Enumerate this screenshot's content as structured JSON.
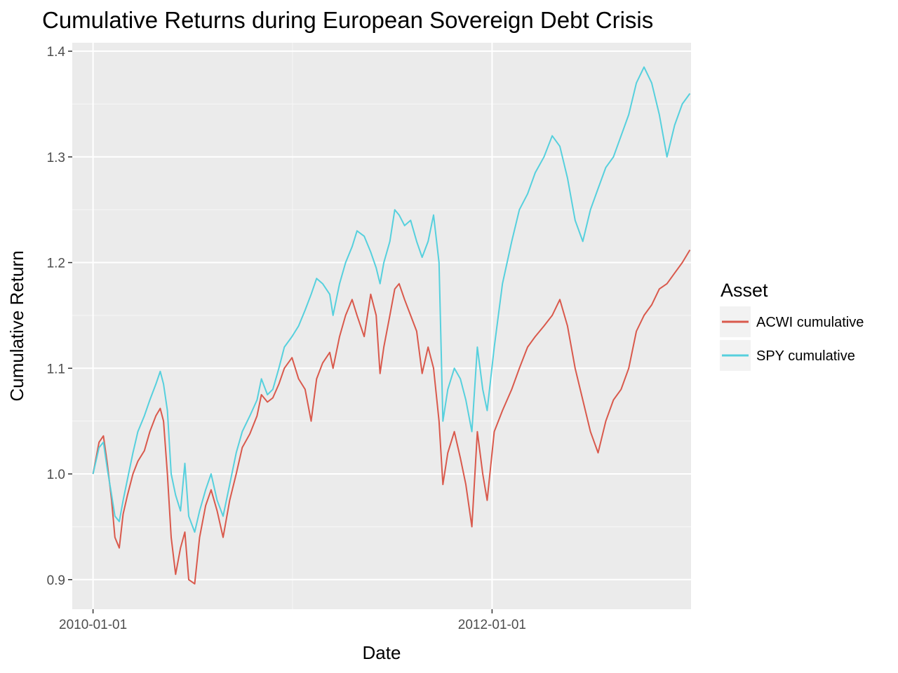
{
  "chart_data": {
    "type": "line",
    "title": "Cumulative Returns during European Sovereign Debt Crisis",
    "xlabel": "Date",
    "ylabel": "Cumulative Return",
    "xlim": [
      "2009-11-24",
      "2012-12-30"
    ],
    "ylim": [
      0.872,
      1.408
    ],
    "x_ticks": [
      "2010-01-01",
      "2012-01-01"
    ],
    "x_minor_ticks": [
      "2011-01-01",
      "2013-01-01"
    ],
    "y_ticks": [
      0.9,
      1.0,
      1.1,
      1.2,
      1.3,
      1.4
    ],
    "y_tick_labels": [
      "0.9",
      "1.0",
      "1.1",
      "1.2",
      "1.3",
      "1.4"
    ],
    "grid": true,
    "legend": {
      "title": "Asset",
      "position": "right"
    },
    "background": "#ebebeb",
    "series": [
      {
        "name": "ACWI cumulative",
        "color": "#d9594c",
        "points": [
          [
            "2010-01-01",
            1.0
          ],
          [
            "2010-01-12",
            1.03
          ],
          [
            "2010-01-20",
            1.036
          ],
          [
            "2010-01-27",
            1.01
          ],
          [
            "2010-02-04",
            0.975
          ],
          [
            "2010-02-10",
            0.94
          ],
          [
            "2010-02-18",
            0.93
          ],
          [
            "2010-02-25",
            0.962
          ],
          [
            "2010-03-05",
            0.98
          ],
          [
            "2010-03-15",
            1.0
          ],
          [
            "2010-03-24",
            1.012
          ],
          [
            "2010-04-05",
            1.022
          ],
          [
            "2010-04-15",
            1.04
          ],
          [
            "2010-04-26",
            1.055
          ],
          [
            "2010-05-04",
            1.062
          ],
          [
            "2010-05-10",
            1.05
          ],
          [
            "2010-05-17",
            1.0
          ],
          [
            "2010-05-24",
            0.94
          ],
          [
            "2010-06-01",
            0.905
          ],
          [
            "2010-06-10",
            0.93
          ],
          [
            "2010-06-18",
            0.945
          ],
          [
            "2010-06-25",
            0.9
          ],
          [
            "2010-07-06",
            0.896
          ],
          [
            "2010-07-15",
            0.94
          ],
          [
            "2010-07-26",
            0.97
          ],
          [
            "2010-08-05",
            0.985
          ],
          [
            "2010-08-16",
            0.965
          ],
          [
            "2010-08-27",
            0.94
          ],
          [
            "2010-09-08",
            0.975
          ],
          [
            "2010-09-20",
            1.0
          ],
          [
            "2010-10-01",
            1.025
          ],
          [
            "2010-10-15",
            1.038
          ],
          [
            "2010-10-28",
            1.055
          ],
          [
            "2010-11-05",
            1.075
          ],
          [
            "2010-11-16",
            1.068
          ],
          [
            "2010-11-26",
            1.072
          ],
          [
            "2010-12-07",
            1.085
          ],
          [
            "2010-12-17",
            1.1
          ],
          [
            "2010-12-31",
            1.11
          ],
          [
            "2011-01-12",
            1.09
          ],
          [
            "2011-01-24",
            1.08
          ],
          [
            "2011-02-04",
            1.05
          ],
          [
            "2011-02-14",
            1.09
          ],
          [
            "2011-02-25",
            1.105
          ],
          [
            "2011-03-10",
            1.115
          ],
          [
            "2011-03-16",
            1.1
          ],
          [
            "2011-03-28",
            1.13
          ],
          [
            "2011-04-08",
            1.15
          ],
          [
            "2011-04-20",
            1.165
          ],
          [
            "2011-04-29",
            1.15
          ],
          [
            "2011-05-12",
            1.13
          ],
          [
            "2011-05-24",
            1.17
          ],
          [
            "2011-06-03",
            1.15
          ],
          [
            "2011-06-10",
            1.095
          ],
          [
            "2011-06-17",
            1.12
          ],
          [
            "2011-06-28",
            1.15
          ],
          [
            "2011-07-07",
            1.175
          ],
          [
            "2011-07-15",
            1.18
          ],
          [
            "2011-07-25",
            1.165
          ],
          [
            "2011-08-05",
            1.15
          ],
          [
            "2011-08-16",
            1.135
          ],
          [
            "2011-08-26",
            1.095
          ],
          [
            "2011-09-06",
            1.12
          ],
          [
            "2011-09-16",
            1.1
          ],
          [
            "2011-09-26",
            1.05
          ],
          [
            "2011-10-03",
            0.99
          ],
          [
            "2011-10-12",
            1.02
          ],
          [
            "2011-10-24",
            1.04
          ],
          [
            "2011-11-04",
            1.015
          ],
          [
            "2011-11-14",
            0.99
          ],
          [
            "2011-11-25",
            0.95
          ],
          [
            "2011-12-05",
            1.04
          ],
          [
            "2011-12-15",
            1.0
          ],
          [
            "2011-12-23",
            0.975
          ],
          [
            "2012-01-05",
            1.04
          ],
          [
            "2012-01-20",
            1.06
          ],
          [
            "2012-02-06",
            1.08
          ],
          [
            "2012-02-20",
            1.1
          ],
          [
            "2012-03-06",
            1.12
          ],
          [
            "2012-03-20",
            1.13
          ],
          [
            "2012-04-05",
            1.14
          ],
          [
            "2012-04-20",
            1.15
          ],
          [
            "2012-05-04",
            1.165
          ],
          [
            "2012-05-18",
            1.14
          ],
          [
            "2012-06-01",
            1.1
          ],
          [
            "2012-06-15",
            1.07
          ],
          [
            "2012-06-29",
            1.04
          ],
          [
            "2012-07-13",
            1.02
          ],
          [
            "2012-07-27",
            1.05
          ],
          [
            "2012-08-10",
            1.07
          ],
          [
            "2012-08-24",
            1.08
          ],
          [
            "2012-09-07",
            1.1
          ],
          [
            "2012-09-21",
            1.135
          ],
          [
            "2012-10-05",
            1.15
          ],
          [
            "2012-10-19",
            1.16
          ],
          [
            "2012-11-02",
            1.175
          ],
          [
            "2012-11-16",
            1.18
          ],
          [
            "2012-11-30",
            1.19
          ],
          [
            "2012-12-14",
            1.2
          ],
          [
            "2012-12-28",
            1.212
          ]
        ]
      },
      {
        "name": "SPY cumulative",
        "color": "#56d0dd",
        "points": [
          [
            "2010-01-01",
            1.0
          ],
          [
            "2010-01-12",
            1.025
          ],
          [
            "2010-01-20",
            1.03
          ],
          [
            "2010-01-27",
            1.005
          ],
          [
            "2010-02-04",
            0.98
          ],
          [
            "2010-02-10",
            0.96
          ],
          [
            "2010-02-18",
            0.955
          ],
          [
            "2010-02-25",
            0.975
          ],
          [
            "2010-03-05",
            0.995
          ],
          [
            "2010-03-15",
            1.02
          ],
          [
            "2010-03-24",
            1.04
          ],
          [
            "2010-04-05",
            1.055
          ],
          [
            "2010-04-15",
            1.07
          ],
          [
            "2010-04-26",
            1.085
          ],
          [
            "2010-05-04",
            1.097
          ],
          [
            "2010-05-10",
            1.085
          ],
          [
            "2010-05-17",
            1.06
          ],
          [
            "2010-05-24",
            1.0
          ],
          [
            "2010-06-01",
            0.98
          ],
          [
            "2010-06-10",
            0.965
          ],
          [
            "2010-06-18",
            1.01
          ],
          [
            "2010-06-25",
            0.96
          ],
          [
            "2010-07-06",
            0.945
          ],
          [
            "2010-07-15",
            0.965
          ],
          [
            "2010-07-26",
            0.985
          ],
          [
            "2010-08-05",
            1.0
          ],
          [
            "2010-08-16",
            0.975
          ],
          [
            "2010-08-27",
            0.96
          ],
          [
            "2010-09-08",
            0.99
          ],
          [
            "2010-09-20",
            1.02
          ],
          [
            "2010-10-01",
            1.04
          ],
          [
            "2010-10-15",
            1.055
          ],
          [
            "2010-10-28",
            1.07
          ],
          [
            "2010-11-05",
            1.09
          ],
          [
            "2010-11-16",
            1.075
          ],
          [
            "2010-11-26",
            1.08
          ],
          [
            "2010-12-07",
            1.1
          ],
          [
            "2010-12-17",
            1.12
          ],
          [
            "2010-12-31",
            1.13
          ],
          [
            "2011-01-12",
            1.14
          ],
          [
            "2011-01-24",
            1.155
          ],
          [
            "2011-02-04",
            1.17
          ],
          [
            "2011-02-14",
            1.185
          ],
          [
            "2011-02-25",
            1.18
          ],
          [
            "2011-03-10",
            1.17
          ],
          [
            "2011-03-16",
            1.15
          ],
          [
            "2011-03-28",
            1.18
          ],
          [
            "2011-04-08",
            1.2
          ],
          [
            "2011-04-20",
            1.215
          ],
          [
            "2011-04-29",
            1.23
          ],
          [
            "2011-05-12",
            1.225
          ],
          [
            "2011-05-24",
            1.21
          ],
          [
            "2011-06-03",
            1.195
          ],
          [
            "2011-06-10",
            1.18
          ],
          [
            "2011-06-17",
            1.2
          ],
          [
            "2011-06-28",
            1.22
          ],
          [
            "2011-07-07",
            1.25
          ],
          [
            "2011-07-15",
            1.245
          ],
          [
            "2011-07-25",
            1.235
          ],
          [
            "2011-08-05",
            1.24
          ],
          [
            "2011-08-16",
            1.22
          ],
          [
            "2011-08-26",
            1.205
          ],
          [
            "2011-09-06",
            1.22
          ],
          [
            "2011-09-16",
            1.245
          ],
          [
            "2011-09-26",
            1.2
          ],
          [
            "2011-10-03",
            1.05
          ],
          [
            "2011-10-12",
            1.08
          ],
          [
            "2011-10-24",
            1.1
          ],
          [
            "2011-11-04",
            1.09
          ],
          [
            "2011-11-14",
            1.07
          ],
          [
            "2011-11-25",
            1.04
          ],
          [
            "2011-12-05",
            1.12
          ],
          [
            "2011-12-15",
            1.08
          ],
          [
            "2011-12-23",
            1.06
          ],
          [
            "2012-01-05",
            1.12
          ],
          [
            "2012-01-20",
            1.18
          ],
          [
            "2012-02-06",
            1.22
          ],
          [
            "2012-02-20",
            1.25
          ],
          [
            "2012-03-06",
            1.265
          ],
          [
            "2012-03-20",
            1.285
          ],
          [
            "2012-04-05",
            1.3
          ],
          [
            "2012-04-20",
            1.32
          ],
          [
            "2012-05-04",
            1.31
          ],
          [
            "2012-05-18",
            1.28
          ],
          [
            "2012-06-01",
            1.24
          ],
          [
            "2012-06-15",
            1.22
          ],
          [
            "2012-06-29",
            1.25
          ],
          [
            "2012-07-13",
            1.27
          ],
          [
            "2012-07-27",
            1.29
          ],
          [
            "2012-08-10",
            1.3
          ],
          [
            "2012-08-24",
            1.32
          ],
          [
            "2012-09-07",
            1.34
          ],
          [
            "2012-09-21",
            1.37
          ],
          [
            "2012-10-05",
            1.385
          ],
          [
            "2012-10-19",
            1.37
          ],
          [
            "2012-11-02",
            1.34
          ],
          [
            "2012-11-16",
            1.3
          ],
          [
            "2012-11-30",
            1.33
          ],
          [
            "2012-12-14",
            1.35
          ],
          [
            "2012-12-28",
            1.36
          ]
        ]
      }
    ]
  }
}
